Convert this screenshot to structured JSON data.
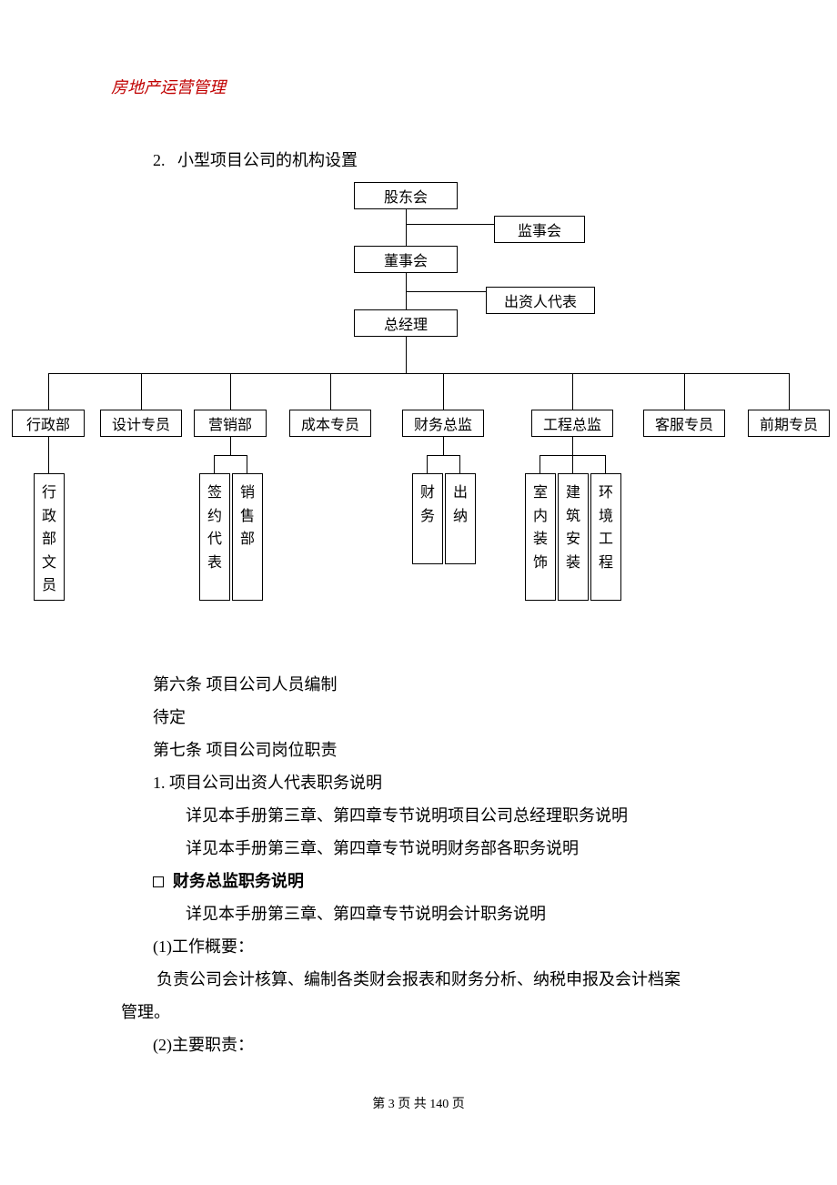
{
  "header": {
    "title": "房地产运营管理",
    "color": "#c00000"
  },
  "section": {
    "number": "2.",
    "title": "小型项目公司的机构设置"
  },
  "org": {
    "top1": "股东会",
    "top2": "董事会",
    "top3": "总经理",
    "side1": "监事会",
    "side2": "出资人代表",
    "depts": [
      "行政部",
      "设计专员",
      "营销部",
      "成本专员",
      "财务总监",
      "工程总监",
      "客服专员",
      "前期专员"
    ],
    "sub_admin": "行政部文员",
    "sub_sales": [
      "签约代表",
      "销售部"
    ],
    "sub_finance": [
      "财务",
      "出纳"
    ],
    "sub_engineer": [
      "室内装饰",
      "建筑安装",
      "环境工程"
    ]
  },
  "body": {
    "p1": "第六条  项目公司人员编制",
    "p2": "待定",
    "p3": "第七条  项目公司岗位职责",
    "p4": "1.  项目公司出资人代表职务说明",
    "p5": "详见本手册第三章、第四章专节说明项目公司总经理职务说明",
    "p6": "详见本手册第三章、第四章专节说明财务部各职务说明",
    "p7": "财务总监职务说明",
    "p8": "详见本手册第三章、第四章专节说明会计职务说明",
    "p9": "(1)工作概要：",
    "p10a": "负责公司会计核算、编制各类财会报表和财务分析、纳税申报及会计档案",
    "p10b": "管理。",
    "p11": "(2)主要职责："
  },
  "footer": {
    "text": "第 3 页 共 140 页"
  },
  "style": {
    "page_bg": "#ffffff",
    "text_color": "#000000",
    "body_fontsize": 18,
    "org_fontsize": 16
  }
}
